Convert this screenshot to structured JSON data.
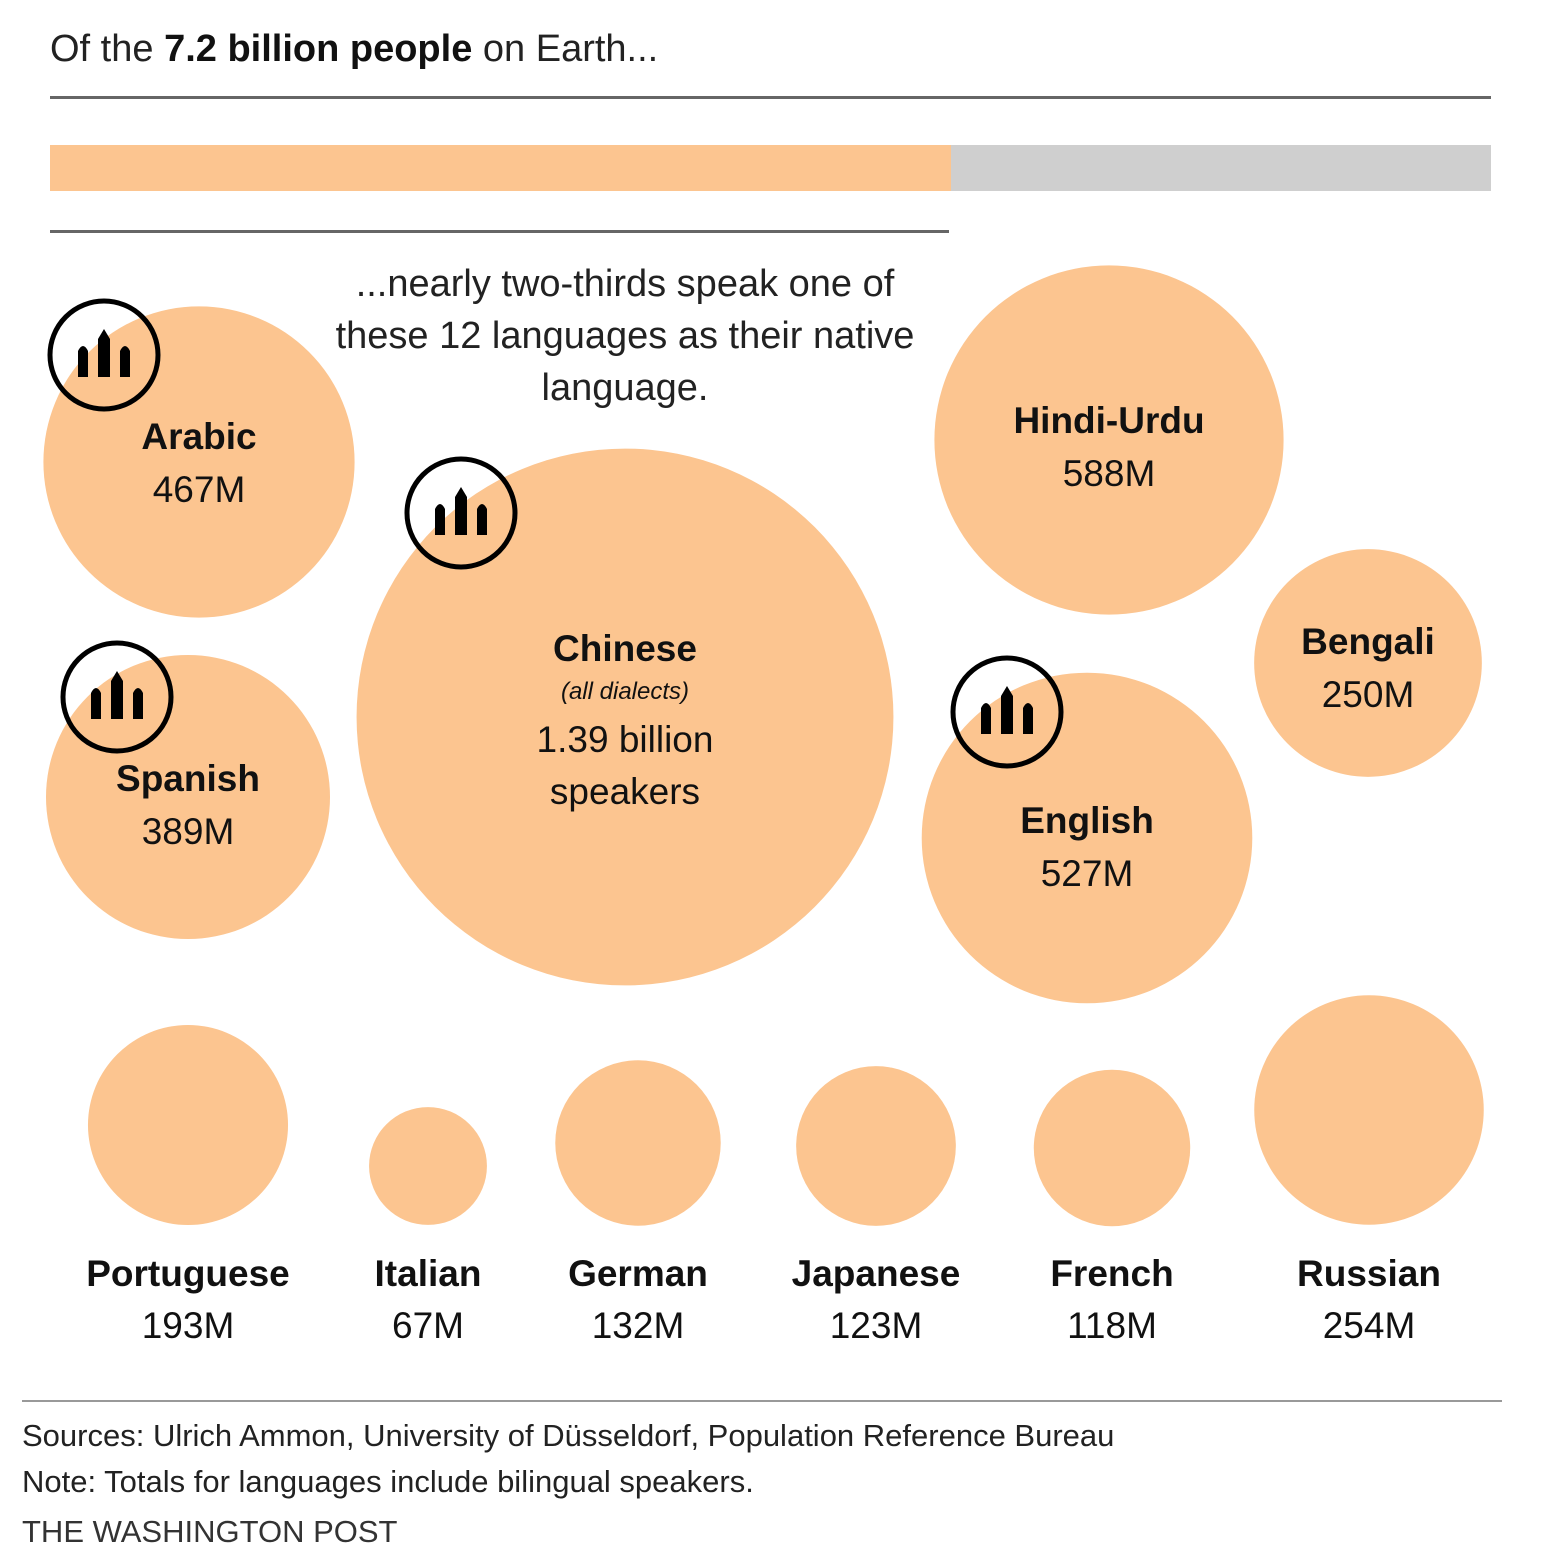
{
  "header": {
    "lead": "Of the",
    "highlight": "7.2 billion people",
    "tail": "on Earth..."
  },
  "subhead": "...nearly two-thirds speak one of these 12 languages as their native language.",
  "share_bar": {
    "fraction": 0.625
  },
  "colors": {
    "bubble": "#fcc590",
    "track": "#cfcfcf",
    "rule": "#666666",
    "text": "#111111"
  },
  "icon_name": "bar-chart-icon",
  "chart_data": {
    "type": "bubble",
    "unit": "M",
    "languages": [
      {
        "name": "Arabic",
        "value": 467,
        "label": "467M",
        "icon": true
      },
      {
        "name": "Chinese",
        "note": "(all dialects)",
        "value": 1390,
        "label": "1.39 billion",
        "label2": "speakers",
        "icon": true
      },
      {
        "name": "Hindi-Urdu",
        "value": 588,
        "label": "588M"
      },
      {
        "name": "Bengali",
        "value": 250,
        "label": "250M"
      },
      {
        "name": "Spanish",
        "value": 389,
        "label": "389M",
        "icon": true
      },
      {
        "name": "English",
        "value": 527,
        "label": "527M",
        "icon": true
      },
      {
        "name": "Portuguese",
        "value": 193,
        "label": "193M"
      },
      {
        "name": "Italian",
        "value": 67,
        "label": "67M"
      },
      {
        "name": "German",
        "value": 132,
        "label": "132M"
      },
      {
        "name": "Japanese",
        "value": 123,
        "label": "123M"
      },
      {
        "name": "French",
        "value": 118,
        "label": "118M"
      },
      {
        "name": "Russian",
        "value": 254,
        "label": "254M"
      }
    ]
  },
  "footer": {
    "sources": "Sources: Ulrich Ammon, University of Düsseldorf, Population Reference Bureau",
    "note": "Note: Totals for languages include bilingual speakers.",
    "credit": "THE WASHINGTON POST"
  }
}
